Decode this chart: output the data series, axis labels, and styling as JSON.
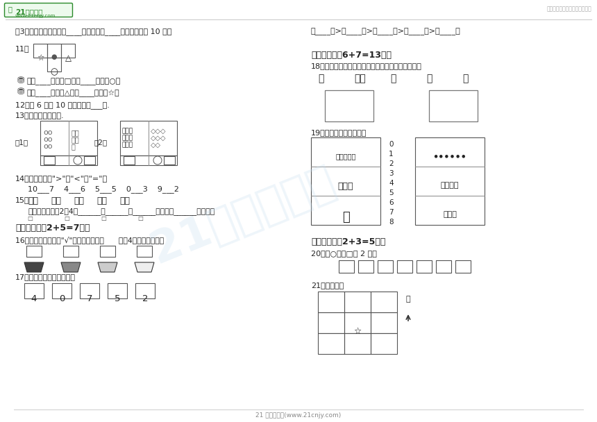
{
  "title_logo_text": "21世纪教育",
  "title_logo_url": "www.21cnjy.com",
  "subtitle_right": "中小学教育资源及组卷应用平台",
  "footer": "21 世纪教育网(www.21cnjy.com)",
  "bg_color": "#ffffff",
  "text_color": "#222222",
  "light_gray": "#888888",
  "green_color": "#2a8a2a",
  "gray_line": "#bbbbbb",
  "q3_text": "（3）从右边数起，第（____）盆和第（____）盆合起来是 10 朵。",
  "q_blank_right": "（____）>（____）>（____）>（____）>（____）",
  "sec3_header": "三、排序题（2+5=7分）",
  "sec4_header": "四、连线题（6+7=13分）",
  "sec5_header": "五、作图题（2+3=5分）",
  "q11_label": "11．",
  "q11_line1": "的（____）面是□，（____）面是○。",
  "q11_line2": "的（____）面是△，（____）面是☆。",
  "q12": "12．比 6 大比 10 小的数有（___）.",
  "q13": "13．数一数，比一比.",
  "q14_header": "14．在横线上填\">\"、\"<\"或\"=\"。",
  "q14_line": "10___7    4___6    5___5    0___3    9___2",
  "q15_label": "15．",
  "q15_text": "两个两个地数：2、4、______、______、______，一共有______颗樱桃。",
  "q16": "16．在最甜的下面画\"√\"，最淡的下面画      。（4块糖完全相同）",
  "q17": "17．我会从大到小排一排。",
  "q17_nums": [
    "4",
    "0",
    "7",
    "5",
    "2"
  ],
  "q18": "18．帮妈妈把买的东西分装在两个口袋里，连一连。",
  "q19": "19．数一数，然后连线。",
  "q19_nums": [
    "0",
    "1",
    "2",
    "3",
    "4",
    "5",
    "6",
    "7",
    "8"
  ],
  "q20": "20．画○，比□少 2 个。",
  "q21": "21．画一画。",
  "q21_note": "北",
  "watermark": "21世纪教育网"
}
